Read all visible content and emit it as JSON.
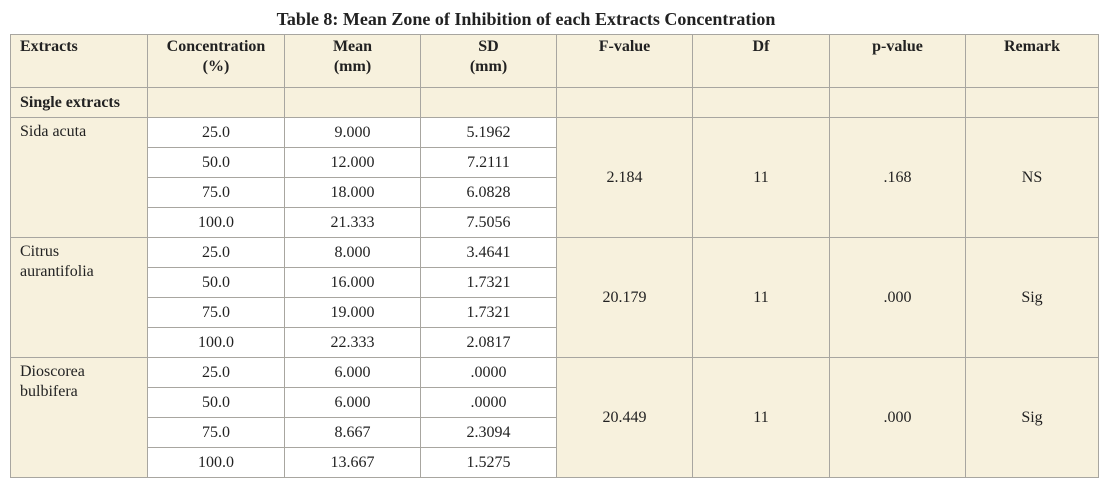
{
  "title": "Table 8: Mean Zone of Inhibition of each Extracts Concentration",
  "headers": {
    "extracts": "Extracts",
    "concentration_1": "Concentration",
    "concentration_2": "(%)",
    "mean_1": "Mean",
    "mean_2": "(mm)",
    "sd_1": "SD",
    "sd_2": "(mm)",
    "fvalue": "F-value",
    "df": "Df",
    "pvalue": "p-value",
    "remark": "Remark"
  },
  "single_extracts_label": "Single extracts",
  "groups": [
    {
      "name_1": "Sida acuta",
      "name_2": "",
      "fvalue": "2.184",
      "df": "11",
      "pvalue": ".168",
      "remark": "NS",
      "rows": [
        {
          "conc": "25.0",
          "mean": "9.000",
          "sd": "5.1962"
        },
        {
          "conc": "50.0",
          "mean": "12.000",
          "sd": "7.2111"
        },
        {
          "conc": "75.0",
          "mean": "18.000",
          "sd": "6.0828"
        },
        {
          "conc": "100.0",
          "mean": "21.333",
          "sd": "7.5056"
        }
      ]
    },
    {
      "name_1": "Citrus",
      "name_2": "aurantifolia",
      "fvalue": "20.179",
      "df": "11",
      "pvalue": ".000",
      "remark": "Sig",
      "rows": [
        {
          "conc": "25.0",
          "mean": "8.000",
          "sd": "3.4641"
        },
        {
          "conc": "50.0",
          "mean": "16.000",
          "sd": "1.7321"
        },
        {
          "conc": "75.0",
          "mean": "19.000",
          "sd": "1.7321"
        },
        {
          "conc": "100.0",
          "mean": "22.333",
          "sd": "2.0817"
        }
      ]
    },
    {
      "name_1": "Dioscorea",
      "name_2": "bulbifera",
      "fvalue": "20.449",
      "df": "11",
      "pvalue": ".000",
      "remark": "Sig",
      "rows": [
        {
          "conc": "25.0",
          "mean": "6.000",
          "sd": ".0000"
        },
        {
          "conc": "50.0",
          "mean": "6.000",
          "sd": ".0000"
        },
        {
          "conc": "75.0",
          "mean": "8.667",
          "sd": "2.3094"
        },
        {
          "conc": "100.0",
          "mean": "13.667",
          "sd": "1.5275"
        }
      ]
    }
  ]
}
